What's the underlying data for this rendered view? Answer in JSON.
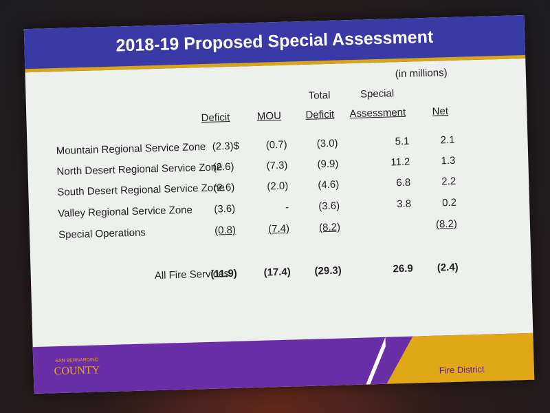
{
  "header": {
    "title": "2018-19 Proposed Special Assessment",
    "units": "(in millions)"
  },
  "table": {
    "columns": [
      {
        "label": "Deficit"
      },
      {
        "label": "MOU"
      },
      {
        "top": "Total",
        "label": "Deficit"
      },
      {
        "top": "Special",
        "label": "Assessment"
      },
      {
        "label": "Net"
      }
    ],
    "rows": [
      {
        "label": "Mountain Regional Service Zone",
        "currency": "$",
        "cells": [
          "(2.3)",
          "(0.7)",
          "(3.0)",
          "5.1",
          "2.1"
        ]
      },
      {
        "label": "North Desert Regional Service Zone",
        "cells": [
          "(2.6)",
          "(7.3)",
          "(9.9)",
          "11.2",
          "1.3"
        ]
      },
      {
        "label": "South Desert Regional Service Zone",
        "cells": [
          "(2.6)",
          "(2.0)",
          "(4.6)",
          "6.8",
          "2.2"
        ]
      },
      {
        "label": "Valley Regional Service Zone",
        "cells": [
          "(3.6)",
          "-",
          "(3.6)",
          "3.8",
          "0.2"
        ]
      },
      {
        "label": "Special Operations",
        "cells": [
          "(0.8)",
          "(7.4)",
          "(8.2)",
          null,
          "(8.2)"
        ]
      }
    ],
    "total": {
      "label": "All Fire Services",
      "cells": [
        "(11.9)",
        "(17.4)",
        "(29.3)",
        "26.9",
        "(2.4)"
      ]
    }
  },
  "footer": {
    "logo_top": "SAN BERNARDINO",
    "logo": "COUNTY",
    "department": "Fire District"
  }
}
